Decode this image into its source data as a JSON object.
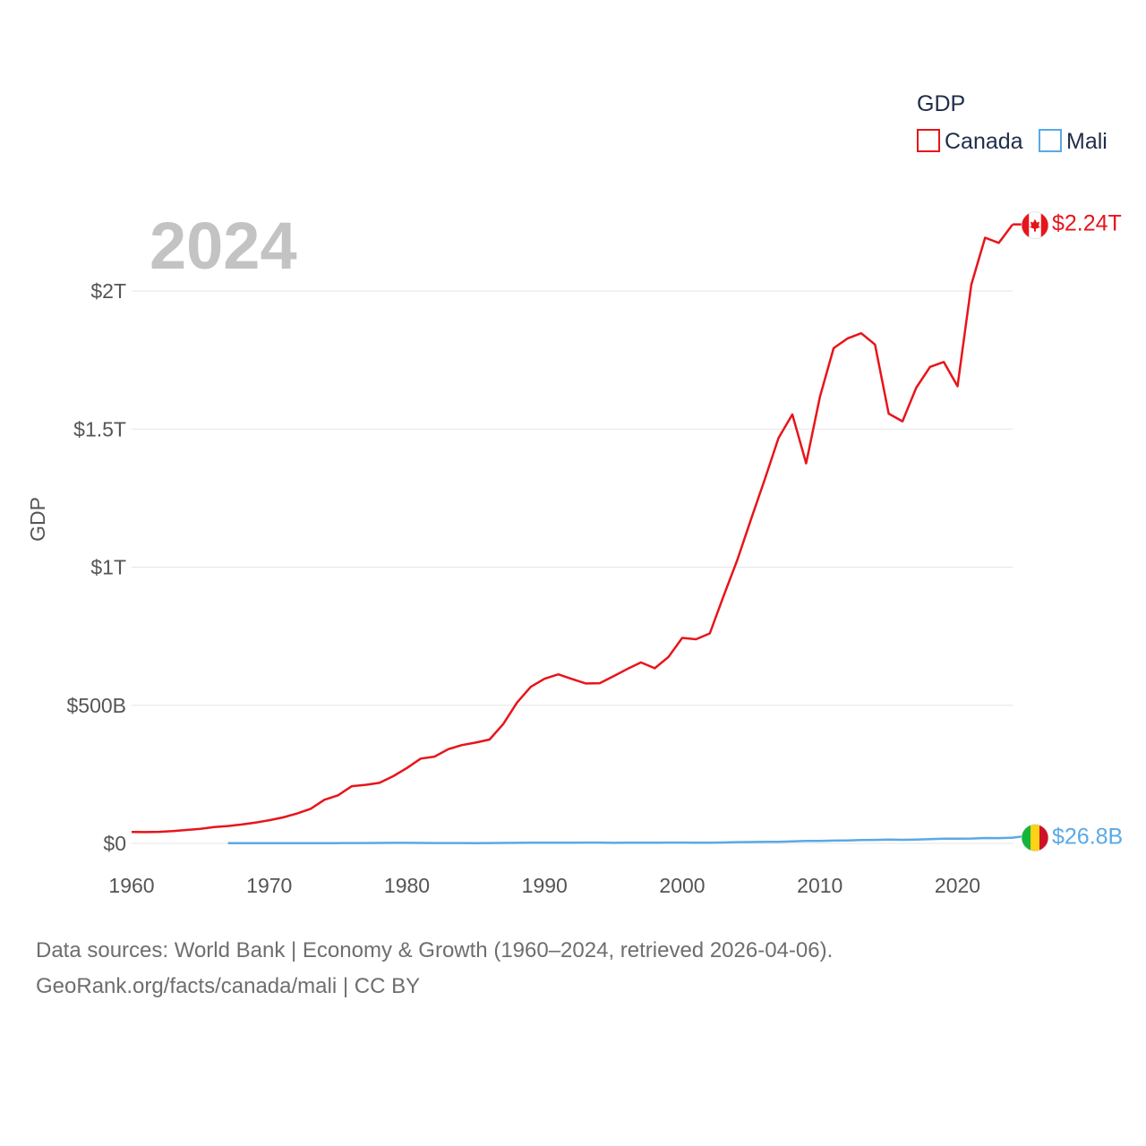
{
  "chart_data": {
    "type": "line",
    "title": "",
    "year_label": "2024",
    "xlabel": "",
    "ylabel": "GDP",
    "xlim": [
      1960,
      2024
    ],
    "ylim": [
      0,
      2240000000000
    ],
    "x_ticks": [
      {
        "value": 1960,
        "label": "1960"
      },
      {
        "value": 1970,
        "label": "1970"
      },
      {
        "value": 1980,
        "label": "1980"
      },
      {
        "value": 1990,
        "label": "1990"
      },
      {
        "value": 2000,
        "label": "2000"
      },
      {
        "value": 2010,
        "label": "2010"
      },
      {
        "value": 2020,
        "label": "2020"
      }
    ],
    "y_ticks": [
      {
        "value": 0,
        "label": "$0"
      },
      {
        "value": 500000000000,
        "label": "$500B"
      },
      {
        "value": 1000000000000,
        "label": "$1T"
      },
      {
        "value": 1500000000000,
        "label": "$1.5T"
      },
      {
        "value": 2000000000000,
        "label": "$2T"
      }
    ],
    "grid": true,
    "legend": {
      "title": "GDP",
      "position": "top-right"
    },
    "series": [
      {
        "name": "Canada",
        "color": "#e8141a",
        "end_label": "$2.24T",
        "flag_icon": "canada-flag-icon",
        "x_start": 1960,
        "values": [
          41.1,
          40.8,
          41.9,
          44.4,
          48.5,
          52.9,
          59.2,
          62.8,
          68.4,
          75.1,
          83.9,
          94.1,
          108,
          125,
          158,
          174,
          207,
          212,
          219,
          243,
          273,
          307,
          314,
          341,
          356,
          365,
          376,
          432,
          510,
          567,
          596,
          612,
          595,
          579,
          580,
          605,
          631,
          655,
          634,
          675,
          744,
          739,
          760,
          895,
          1026,
          1174,
          1319,
          1468,
          1553,
          1376,
          1617,
          1793,
          1828,
          1847,
          1806,
          1556,
          1528,
          1650,
          1725,
          1743,
          1655,
          2023,
          2193,
          2174,
          2241
        ],
        "value_unit_multiplier": 1000000000
      },
      {
        "name": "Mali",
        "color": "#5aa9e6",
        "end_label": "$26.8B",
        "flag_icon": "mali-flag-icon",
        "x_start": 1967,
        "values": [
          0.5,
          0.5,
          0.5,
          0.5,
          0.6,
          0.7,
          0.8,
          0.9,
          1.0,
          1.2,
          1.3,
          1.6,
          1.8,
          1.9,
          1.7,
          1.4,
          1.3,
          1.2,
          1.1,
          1.3,
          1.6,
          2.1,
          2.2,
          2.4,
          2.4,
          2.6,
          2.8,
          2.8,
          2.0,
          2.5,
          2.7,
          2.6,
          2.8,
          2.8,
          2.6,
          2.7,
          3.4,
          4.4,
          5.0,
          5.5,
          5.9,
          7.1,
          8.7,
          8.9,
          10.0,
          10.7,
          12.4,
          12.8,
          13.6,
          13.1,
          14.0,
          15.4,
          17.1,
          17.3,
          17.5,
          19.3,
          19.1,
          20.8,
          26.8
        ],
        "value_unit_multiplier": 1000000000
      }
    ]
  },
  "footer": {
    "line1": "Data sources: World Bank | Economy & Growth (1960–2024, retrieved 2026-04-06).",
    "line2": "GeoRank.org/facts/canada/mali | CC BY"
  }
}
